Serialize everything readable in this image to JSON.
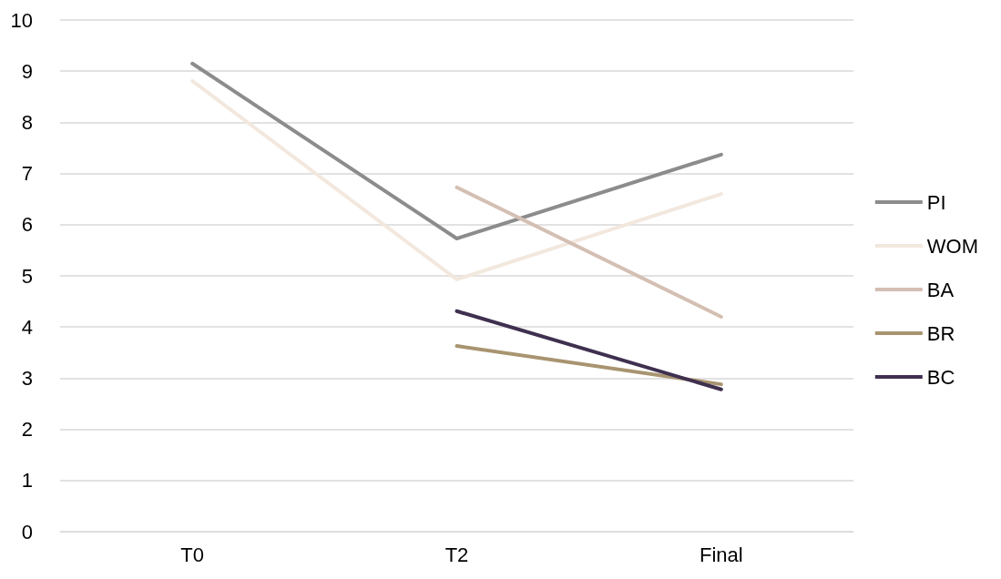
{
  "chart_data": {
    "type": "line",
    "categories": [
      "T0",
      "T2",
      "Final"
    ],
    "series": [
      {
        "name": "PI",
        "color": "#8c8c8c",
        "values": [
          9.15,
          5.73,
          7.37
        ]
      },
      {
        "name": "WOM",
        "color": "#f2e8de",
        "values": [
          8.81,
          4.93,
          6.6
        ]
      },
      {
        "name": "BA",
        "color": "#d4bfb3",
        "values": [
          null,
          6.73,
          4.2
        ]
      },
      {
        "name": "BR",
        "color": "#a89470",
        "values": [
          null,
          3.63,
          2.88
        ]
      },
      {
        "name": "BC",
        "color": "#3f3050",
        "values": [
          null,
          4.31,
          2.78
        ]
      }
    ],
    "ylim": [
      0,
      10
    ],
    "yticks": [
      0,
      1,
      2,
      3,
      4,
      5,
      6,
      7,
      8,
      9,
      10
    ],
    "grid": "y",
    "legend": "right",
    "marker": "none",
    "line_style": "solid"
  }
}
